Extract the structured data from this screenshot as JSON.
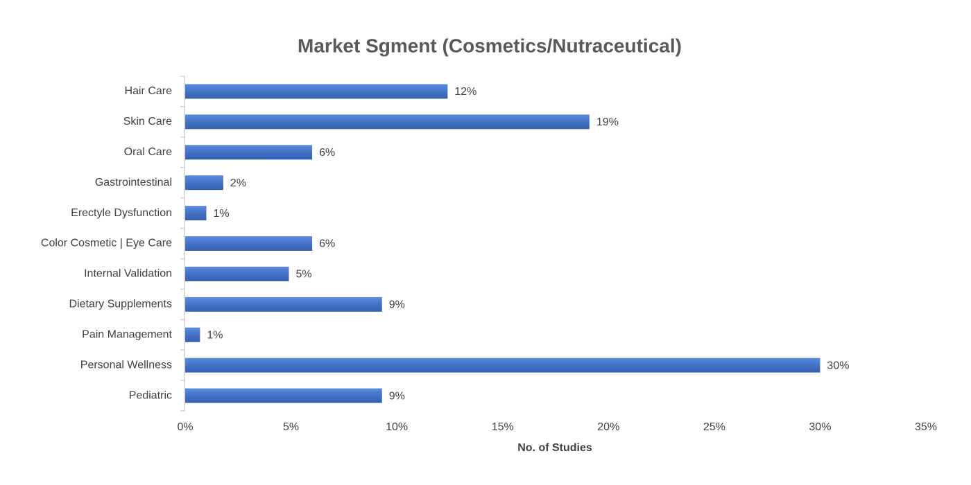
{
  "chart_data": {
    "type": "bar",
    "orientation": "horizontal",
    "title": "Market Sgment (Cosmetics/Nutraceutical)",
    "x_label": "No. of Studies",
    "categories": [
      "Hair Care",
      "Skin Care",
      "Oral Care",
      "Gastrointestinal",
      "Erectyle Dysfunction",
      "Color Cosmetic | Eye Care",
      "Internal Validation",
      "Dietary Supplements",
      "Pain Management",
      "Personal Wellness",
      "Pediatric"
    ],
    "values": [
      12.4,
      19.1,
      6.0,
      1.8,
      1.0,
      6.0,
      4.9,
      9.3,
      0.7,
      30.0,
      9.3
    ],
    "value_labels": [
      "12%",
      "19%",
      "6%",
      "2%",
      "1%",
      "6%",
      "5%",
      "9%",
      "1%",
      "30%",
      "9%"
    ],
    "color": "#4472c4",
    "xlim": [
      0,
      35
    ],
    "xticks": [
      {
        "value": 0,
        "label": "0%"
      },
      {
        "value": 5,
        "label": "5%"
      },
      {
        "value": 10,
        "label": "10%"
      },
      {
        "value": 15,
        "label": "15%"
      },
      {
        "value": 20,
        "label": "20%"
      },
      {
        "value": 25,
        "label": "25%"
      },
      {
        "value": 30,
        "label": "30%"
      },
      {
        "value": 35,
        "label": "35%"
      }
    ],
    "grid": false
  }
}
